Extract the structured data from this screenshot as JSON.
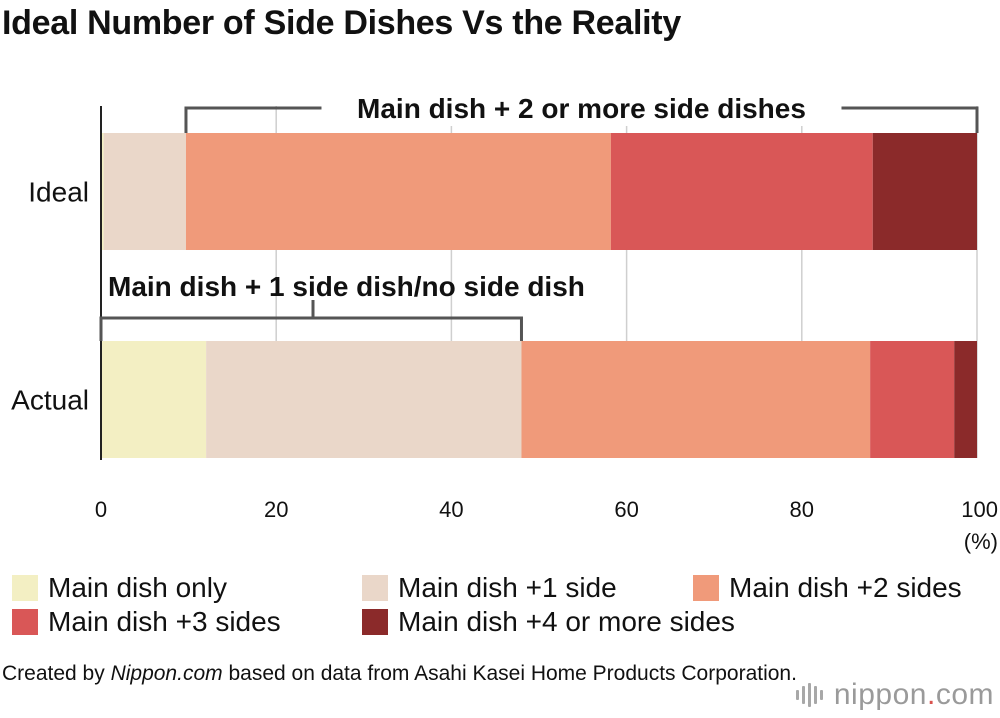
{
  "title": "Ideal Number of Side Dishes Vs the Reality",
  "chart_data": {
    "type": "bar",
    "orientation": "horizontal",
    "stacked": true,
    "categories": [
      "Ideal",
      "Actual"
    ],
    "series": [
      {
        "name": "Main dish only",
        "color": "#f3efc3",
        "values": [
          0.3,
          12
        ]
      },
      {
        "name": "Main dish +1 side",
        "color": "#ead7c9",
        "values": [
          9.4,
          36
        ]
      },
      {
        "name": "Main dish +2 sides",
        "color": "#f09a7a",
        "values": [
          48.5,
          39.8
        ]
      },
      {
        "name": "Main dish +3 sides",
        "color": "#d95757",
        "values": [
          29.9,
          9.6
        ]
      },
      {
        "name": "Main dish +4 or more sides",
        "color": "#8b2a2a",
        "values": [
          11.9,
          2.6
        ]
      }
    ],
    "xlim": [
      0,
      100
    ],
    "xticks": [
      0,
      20,
      40,
      60,
      80,
      100
    ],
    "xunit": "(%)",
    "grid": true,
    "legend_position": "bottom",
    "annotations": [
      {
        "text": "Main dish + 2 or more side dishes",
        "category": "Ideal",
        "from": 9.7,
        "to": 100,
        "side": "above"
      },
      {
        "text": "Main dish + 1 side dish/no side dish",
        "category": "Actual",
        "from": 0,
        "to": 48,
        "side": "above"
      }
    ]
  },
  "footer": {
    "prefix": "Created by ",
    "source_name": "Nippon.com",
    "suffix": " based on data from Asahi Kasei Home Products Corporation."
  },
  "brand": {
    "name": "nippon",
    "dot": ".",
    "tld": "com"
  }
}
